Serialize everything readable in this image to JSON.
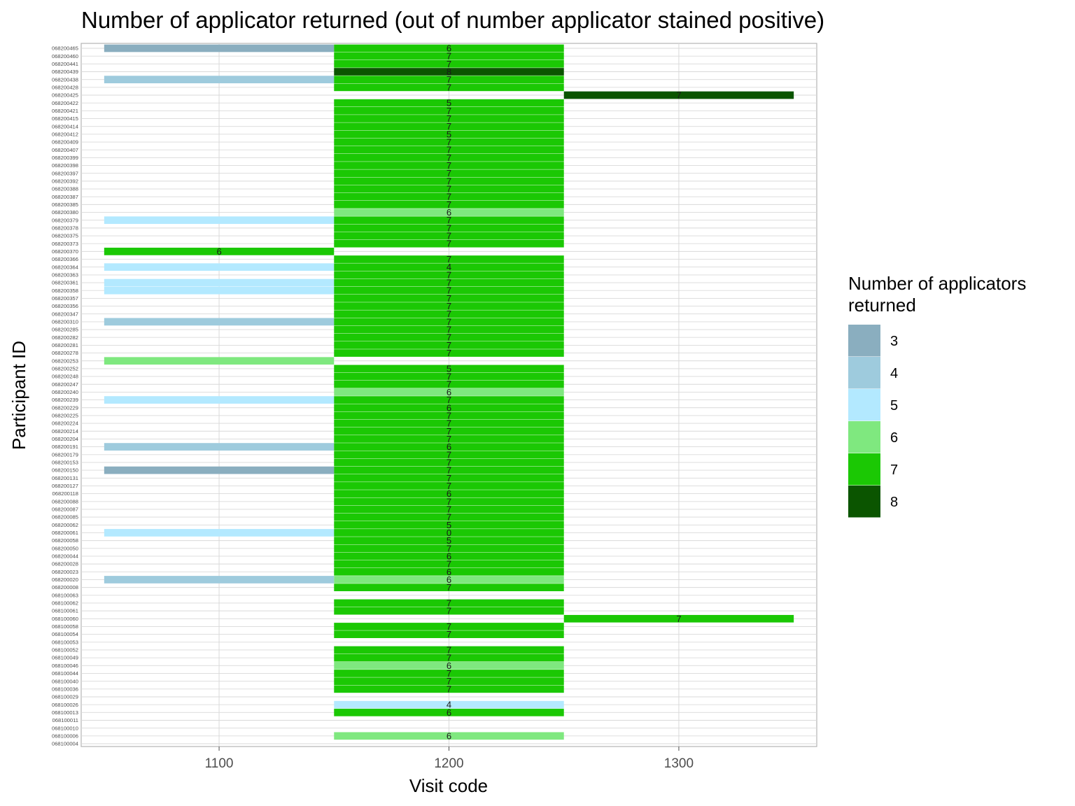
{
  "chart_data": {
    "type": "heatmap",
    "title": "Number of applicator returned (out of number applicator stained positive)",
    "xlabel": "Visit code",
    "ylabel": "Participant ID",
    "x_ticks": [
      1100,
      1200,
      1300
    ],
    "xlim": [
      1040,
      1360
    ],
    "legend": {
      "title_lines": [
        "Number of applicators",
        "returned"
      ],
      "placement": "right",
      "levels": [
        {
          "value": 3,
          "label": "3",
          "color": "#8aaebf"
        },
        {
          "value": 4,
          "label": "4",
          "color": "#9ecbdd"
        },
        {
          "value": 5,
          "label": "5",
          "color": "#b3e9ff"
        },
        {
          "value": 6,
          "label": "6",
          "color": "#7fe87f"
        },
        {
          "value": 7,
          "label": "7",
          "color": "#1bc804"
        },
        {
          "value": 8,
          "label": "8",
          "color": "#0b5500"
        }
      ]
    },
    "participants": [
      "068200465",
      "068200460",
      "068200441",
      "068200439",
      "068200438",
      "068200428",
      "068200425",
      "068200422",
      "068200421",
      "068200415",
      "068200414",
      "068200412",
      "068200409",
      "068200407",
      "068200399",
      "068200398",
      "068200397",
      "068200392",
      "068200388",
      "068200387",
      "068200385",
      "068200380",
      "068200379",
      "068200378",
      "068200375",
      "068200373",
      "068200370",
      "068200366",
      "068200364",
      "068200363",
      "068200361",
      "068200358",
      "068200357",
      "068200356",
      "068200347",
      "068200310",
      "068200285",
      "068200282",
      "068200281",
      "068200278",
      "068200253",
      "068200252",
      "068200248",
      "068200247",
      "068200240",
      "068200239",
      "068200229",
      "068200225",
      "068200224",
      "068200214",
      "068200204",
      "068200191",
      "068200179",
      "068200153",
      "068200150",
      "068200131",
      "068200127",
      "068200118",
      "068200088",
      "068200087",
      "068200085",
      "068200062",
      "068200061",
      "068200058",
      "068200050",
      "068200044",
      "068200028",
      "068200023",
      "068200020",
      "068200008",
      "068100063",
      "068100062",
      "068100061",
      "068100060",
      "068100058",
      "068100054",
      "068100053",
      "068100052",
      "068100049",
      "068100046",
      "068100044",
      "068100040",
      "068100036",
      "068100029",
      "068100026",
      "068100013",
      "068100011",
      "068100010",
      "068100006",
      "068100004"
    ],
    "cells": [
      {
        "id": "068200465",
        "visit": 1100,
        "value": 3
      },
      {
        "id": "068200438",
        "visit": 1100,
        "value": 4
      },
      {
        "id": "068200379",
        "visit": 1100,
        "value": 5
      },
      {
        "id": "068200370",
        "visit": 1100,
        "value": 7,
        "label": "6"
      },
      {
        "id": "068200364",
        "visit": 1100,
        "value": 5
      },
      {
        "id": "068200361",
        "visit": 1100,
        "value": 5
      },
      {
        "id": "068200358",
        "visit": 1100,
        "value": 5
      },
      {
        "id": "068200310",
        "visit": 1100,
        "value": 4
      },
      {
        "id": "068200253",
        "visit": 1100,
        "value": 6
      },
      {
        "id": "068200239",
        "visit": 1100,
        "value": 5
      },
      {
        "id": "068200191",
        "visit": 1100,
        "value": 4
      },
      {
        "id": "068200150",
        "visit": 1100,
        "value": 3
      },
      {
        "id": "068200061",
        "visit": 1100,
        "value": 5
      },
      {
        "id": "068200020",
        "visit": 1100,
        "value": 4
      },
      {
        "id": "068200465",
        "visit": 1200,
        "value": 7,
        "label": "6"
      },
      {
        "id": "068200460",
        "visit": 1200,
        "value": 7,
        "label": "7"
      },
      {
        "id": "068200441",
        "visit": 1200,
        "value": 7,
        "label": "7"
      },
      {
        "id": "068200439",
        "visit": 1200,
        "value": 8,
        "label": "8"
      },
      {
        "id": "068200438",
        "visit": 1200,
        "value": 7,
        "label": "7"
      },
      {
        "id": "068200428",
        "visit": 1200,
        "value": 7,
        "label": "7"
      },
      {
        "id": "068200422",
        "visit": 1200,
        "value": 7,
        "label": "5"
      },
      {
        "id": "068200421",
        "visit": 1200,
        "value": 7,
        "label": "7"
      },
      {
        "id": "068200415",
        "visit": 1200,
        "value": 7,
        "label": "7"
      },
      {
        "id": "068200414",
        "visit": 1200,
        "value": 7,
        "label": "7"
      },
      {
        "id": "068200412",
        "visit": 1200,
        "value": 7,
        "label": "5"
      },
      {
        "id": "068200409",
        "visit": 1200,
        "value": 7,
        "label": "7"
      },
      {
        "id": "068200407",
        "visit": 1200,
        "value": 7,
        "label": "7"
      },
      {
        "id": "068200399",
        "visit": 1200,
        "value": 7,
        "label": "7"
      },
      {
        "id": "068200398",
        "visit": 1200,
        "value": 7,
        "label": "7"
      },
      {
        "id": "068200397",
        "visit": 1200,
        "value": 7,
        "label": "7"
      },
      {
        "id": "068200392",
        "visit": 1200,
        "value": 7,
        "label": "7"
      },
      {
        "id": "068200388",
        "visit": 1200,
        "value": 7,
        "label": "7"
      },
      {
        "id": "068200387",
        "visit": 1200,
        "value": 7,
        "label": "7"
      },
      {
        "id": "068200385",
        "visit": 1200,
        "value": 7,
        "label": "7"
      },
      {
        "id": "068200380",
        "visit": 1200,
        "value": 6,
        "label": "6"
      },
      {
        "id": "068200379",
        "visit": 1200,
        "value": 7,
        "label": "7"
      },
      {
        "id": "068200378",
        "visit": 1200,
        "value": 7,
        "label": "7"
      },
      {
        "id": "068200375",
        "visit": 1200,
        "value": 7,
        "label": "7"
      },
      {
        "id": "068200373",
        "visit": 1200,
        "value": 7,
        "label": "7"
      },
      {
        "id": "068200366",
        "visit": 1200,
        "value": 7,
        "label": "7"
      },
      {
        "id": "068200364",
        "visit": 1200,
        "value": 7,
        "label": "4"
      },
      {
        "id": "068200363",
        "visit": 1200,
        "value": 7,
        "label": "7"
      },
      {
        "id": "068200361",
        "visit": 1200,
        "value": 7,
        "label": "7"
      },
      {
        "id": "068200358",
        "visit": 1200,
        "value": 7,
        "label": "7"
      },
      {
        "id": "068200357",
        "visit": 1200,
        "value": 7,
        "label": "7"
      },
      {
        "id": "068200356",
        "visit": 1200,
        "value": 7,
        "label": "7"
      },
      {
        "id": "068200347",
        "visit": 1200,
        "value": 7,
        "label": "7"
      },
      {
        "id": "068200310",
        "visit": 1200,
        "value": 7,
        "label": "7"
      },
      {
        "id": "068200285",
        "visit": 1200,
        "value": 7,
        "label": "7"
      },
      {
        "id": "068200282",
        "visit": 1200,
        "value": 7,
        "label": "7"
      },
      {
        "id": "068200281",
        "visit": 1200,
        "value": 7,
        "label": "7"
      },
      {
        "id": "068200278",
        "visit": 1200,
        "value": 7,
        "label": "7"
      },
      {
        "id": "068200252",
        "visit": 1200,
        "value": 7,
        "label": "5"
      },
      {
        "id": "068200248",
        "visit": 1200,
        "value": 7,
        "label": "7"
      },
      {
        "id": "068200247",
        "visit": 1200,
        "value": 7,
        "label": "7"
      },
      {
        "id": "068200240",
        "visit": 1200,
        "value": 6,
        "label": "6"
      },
      {
        "id": "068200239",
        "visit": 1200,
        "value": 7,
        "label": "7"
      },
      {
        "id": "068200229",
        "visit": 1200,
        "value": 7,
        "label": "6"
      },
      {
        "id": "068200225",
        "visit": 1200,
        "value": 7,
        "label": "7"
      },
      {
        "id": "068200224",
        "visit": 1200,
        "value": 7,
        "label": "7"
      },
      {
        "id": "068200214",
        "visit": 1200,
        "value": 7,
        "label": "7"
      },
      {
        "id": "068200204",
        "visit": 1200,
        "value": 7,
        "label": "7"
      },
      {
        "id": "068200191",
        "visit": 1200,
        "value": 7,
        "label": "6"
      },
      {
        "id": "068200179",
        "visit": 1200,
        "value": 7,
        "label": "7"
      },
      {
        "id": "068200153",
        "visit": 1200,
        "value": 7,
        "label": "7"
      },
      {
        "id": "068200150",
        "visit": 1200,
        "value": 7,
        "label": "7"
      },
      {
        "id": "068200131",
        "visit": 1200,
        "value": 7,
        "label": "7"
      },
      {
        "id": "068200127",
        "visit": 1200,
        "value": 7,
        "label": "7"
      },
      {
        "id": "068200118",
        "visit": 1200,
        "value": 7,
        "label": "6"
      },
      {
        "id": "068200088",
        "visit": 1200,
        "value": 7,
        "label": "7"
      },
      {
        "id": "068200087",
        "visit": 1200,
        "value": 7,
        "label": "7"
      },
      {
        "id": "068200085",
        "visit": 1200,
        "value": 7,
        "label": "7"
      },
      {
        "id": "068200062",
        "visit": 1200,
        "value": 7,
        "label": "5"
      },
      {
        "id": "068200061",
        "visit": 1200,
        "value": 7,
        "label": "0"
      },
      {
        "id": "068200058",
        "visit": 1200,
        "value": 7,
        "label": "5"
      },
      {
        "id": "068200050",
        "visit": 1200,
        "value": 7,
        "label": "7"
      },
      {
        "id": "068200044",
        "visit": 1200,
        "value": 7,
        "label": "6"
      },
      {
        "id": "068200028",
        "visit": 1200,
        "value": 7,
        "label": "7"
      },
      {
        "id": "068200023",
        "visit": 1200,
        "value": 7,
        "label": "6"
      },
      {
        "id": "068200020",
        "visit": 1200,
        "value": 6,
        "label": "6"
      },
      {
        "id": "068200008",
        "visit": 1200,
        "value": 7,
        "label": "7"
      },
      {
        "id": "068100062",
        "visit": 1200,
        "value": 7,
        "label": "7"
      },
      {
        "id": "068100061",
        "visit": 1200,
        "value": 7,
        "label": "7"
      },
      {
        "id": "068100058",
        "visit": 1200,
        "value": 7,
        "label": "7"
      },
      {
        "id": "068100054",
        "visit": 1200,
        "value": 7,
        "label": "7"
      },
      {
        "id": "068100052",
        "visit": 1200,
        "value": 7,
        "label": "7"
      },
      {
        "id": "068100049",
        "visit": 1200,
        "value": 7,
        "label": "7"
      },
      {
        "id": "068100046",
        "visit": 1200,
        "value": 6,
        "label": "6"
      },
      {
        "id": "068100044",
        "visit": 1200,
        "value": 7,
        "label": "7"
      },
      {
        "id": "068100040",
        "visit": 1200,
        "value": 7,
        "label": "7"
      },
      {
        "id": "068100036",
        "visit": 1200,
        "value": 7,
        "label": "7"
      },
      {
        "id": "068100026",
        "visit": 1200,
        "value": 5,
        "label": "4"
      },
      {
        "id": "068100013",
        "visit": 1200,
        "value": 7,
        "label": "6"
      },
      {
        "id": "068100006",
        "visit": 1200,
        "value": 6,
        "label": "6"
      },
      {
        "id": "068200425",
        "visit": 1300,
        "value": 8,
        "label": "7"
      },
      {
        "id": "068100060",
        "visit": 1300,
        "value": 7,
        "label": "7"
      }
    ]
  }
}
